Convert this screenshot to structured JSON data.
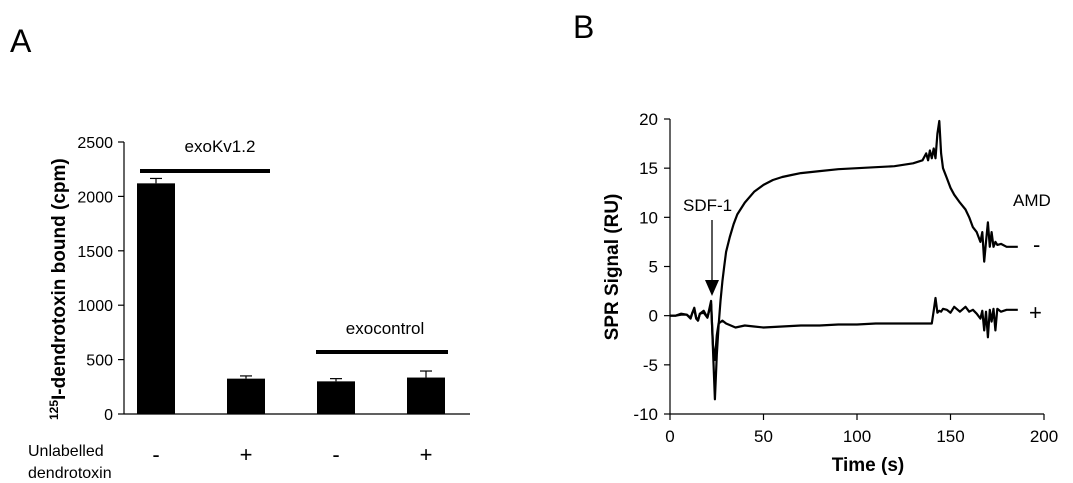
{
  "panels": {
    "a": "A",
    "b": "B"
  },
  "chart_data": [
    {
      "type": "bar",
      "panel": "A",
      "ylabel_sup": "125",
      "ylabel": "I-dendrotoxin  bound  (cpm)",
      "ylim": [
        0,
        2500
      ],
      "yticks": [
        0,
        500,
        1000,
        1500,
        2000,
        2500
      ],
      "categories": [
        "-",
        "+",
        "-",
        "+"
      ],
      "values": [
        2120,
        325,
        300,
        335
      ],
      "errors": [
        45,
        25,
        25,
        60
      ],
      "bar_color": "#000000",
      "group_labels": [
        "exoKv1.2",
        "exocontrol"
      ],
      "xrow_label": [
        "Unlabelled",
        "dendrotoxin"
      ],
      "grid": false
    },
    {
      "type": "line",
      "panel": "B",
      "xlabel": "Time (s)",
      "ylabel": "SPR Signal (RU)",
      "xlim": [
        0,
        200
      ],
      "ylim": [
        -10,
        20
      ],
      "xticks": [
        0,
        50,
        100,
        150,
        200
      ],
      "yticks": [
        -10,
        -5,
        0,
        5,
        10,
        15,
        20
      ],
      "annotations": [
        "SDF-1",
        "AMD"
      ],
      "series": [
        {
          "name": "-",
          "x": [
            0,
            3,
            6,
            9,
            11,
            12,
            13,
            14,
            15,
            16,
            18,
            20,
            22,
            23,
            24,
            25,
            26,
            27,
            28,
            29,
            30,
            32,
            34,
            36,
            40,
            45,
            50,
            55,
            60,
            65,
            70,
            75,
            80,
            90,
            100,
            110,
            120,
            130,
            135,
            137,
            138,
            139,
            140,
            141,
            142,
            143,
            144,
            145,
            146,
            148,
            150,
            152,
            155,
            158,
            160,
            162,
            164,
            166,
            167,
            168,
            169,
            170,
            171,
            172,
            173,
            174,
            175,
            177,
            180,
            183,
            186
          ],
          "y": [
            0,
            0,
            0.2,
            0.1,
            -0.3,
            0.3,
            0.8,
            -0.2,
            -0.5,
            0.2,
            0.5,
            -0.2,
            1.5,
            -3.5,
            -8.5,
            -4,
            -1,
            1.5,
            3.5,
            5,
            6.5,
            8,
            9.3,
            10.3,
            11.5,
            12.6,
            13.3,
            13.8,
            14.1,
            14.3,
            14.5,
            14.6,
            14.7,
            14.9,
            15,
            15.1,
            15.2,
            15.5,
            15.8,
            16.5,
            15.8,
            16.8,
            16,
            17,
            16,
            18.5,
            19.8,
            16.5,
            15,
            14,
            13,
            12.3,
            11.5,
            10.8,
            10,
            9,
            8.5,
            7.5,
            8.5,
            5.5,
            7.5,
            9.5,
            7,
            8.5,
            7,
            7.5,
            7.2,
            7.3,
            7,
            7,
            7
          ],
          "label": "-"
        },
        {
          "name": "+",
          "x": [
            0,
            3,
            6,
            9,
            11,
            12,
            13,
            14,
            15,
            16,
            18,
            20,
            22,
            23,
            24,
            25,
            26,
            28,
            30,
            35,
            40,
            45,
            50,
            60,
            70,
            80,
            90,
            100,
            110,
            120,
            130,
            140,
            141,
            142,
            143,
            144,
            145,
            146,
            148,
            150,
            152,
            155,
            158,
            160,
            162,
            164,
            166,
            167,
            168,
            169,
            170,
            171,
            172,
            173,
            174,
            175,
            177,
            180,
            183,
            186
          ],
          "y": [
            0,
            0,
            0.1,
            0.1,
            -0.2,
            0.3,
            0.6,
            -0.3,
            -0.5,
            0.2,
            0.3,
            -0.2,
            1.2,
            -3,
            -4.5,
            -2,
            -0.8,
            -0.5,
            -0.8,
            -1.2,
            -1,
            -1.1,
            -1.2,
            -1.1,
            -1.0,
            -1.0,
            -0.9,
            -0.9,
            -0.8,
            -0.8,
            -0.8,
            -0.8,
            0.5,
            1.8,
            0.3,
            0.5,
            0.4,
            0.7,
            0.6,
            0.3,
            0.9,
            0.4,
            0.9,
            0.4,
            0.6,
            0.2,
            -0.3,
            0.5,
            -1.5,
            0.4,
            -2.2,
            0.6,
            -0.6,
            0.7,
            -1.5,
            0.7,
            0.4,
            0.6,
            0.6,
            0.6
          ],
          "label": "+"
        }
      ]
    }
  ]
}
